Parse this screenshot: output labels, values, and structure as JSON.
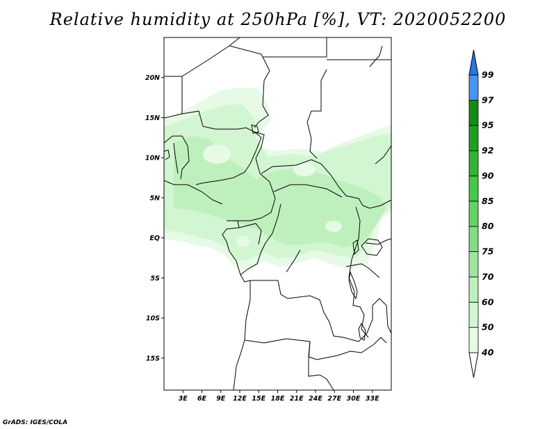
{
  "title": "Relative humidity at 250hPa [%], VT: 2020052200",
  "credit": "GrADS: IGES/COLA",
  "map": {
    "lon_range": [
      0,
      36
    ],
    "lat_range": [
      -19,
      25
    ],
    "lat_ticks": [
      {
        "value": 20,
        "label": "20N"
      },
      {
        "value": 15,
        "label": "15N"
      },
      {
        "value": 10,
        "label": "10N"
      },
      {
        "value": 5,
        "label": "5N"
      },
      {
        "value": 0,
        "label": "EQ"
      },
      {
        "value": -5,
        "label": "5S"
      },
      {
        "value": -10,
        "label": "10S"
      },
      {
        "value": -15,
        "label": "15S"
      }
    ],
    "lon_ticks": [
      {
        "value": 3,
        "label": "3E"
      },
      {
        "value": 6,
        "label": "6E"
      },
      {
        "value": 9,
        "label": "9E"
      },
      {
        "value": 12,
        "label": "12E"
      },
      {
        "value": 15,
        "label": "15E"
      },
      {
        "value": 18,
        "label": "18E"
      },
      {
        "value": 21,
        "label": "21E"
      },
      {
        "value": 24,
        "label": "24E"
      },
      {
        "value": 27,
        "label": "27E"
      },
      {
        "value": 30,
        "label": "30E"
      },
      {
        "value": 33,
        "label": "33E"
      }
    ]
  },
  "colorbar": {
    "levels": [
      "40",
      "50",
      "60",
      "70",
      "75",
      "80",
      "85",
      "90",
      "92",
      "95",
      "97",
      "99"
    ],
    "colors": [
      "#e6fae6",
      "#d2f5d2",
      "#bef0be",
      "#a0e6a0",
      "#82dc82",
      "#64d264",
      "#46c846",
      "#32b432",
      "#1ea01e",
      "#148c14",
      "#4696f0",
      "#2878e6",
      "#145ad2"
    ]
  }
}
